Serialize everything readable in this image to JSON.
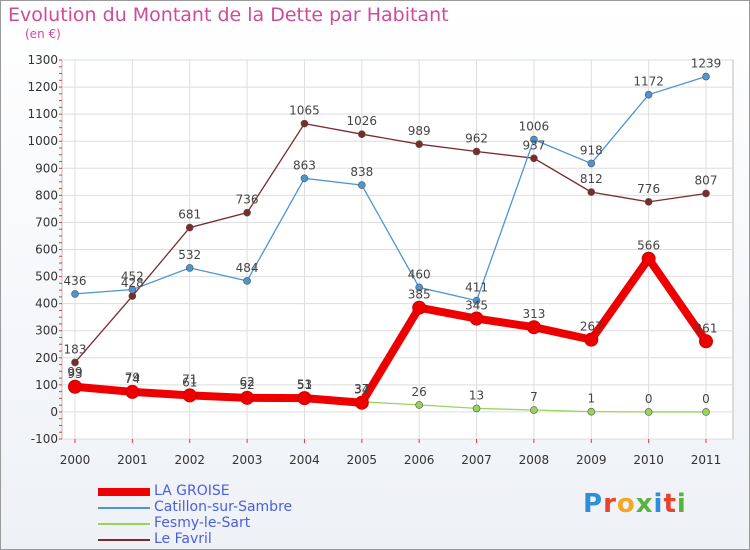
{
  "header": {
    "title": "Evolution du Montant de la Dette par Habitant",
    "unit": "(en €)"
  },
  "logo": {
    "text": "Proxiti",
    "colors": [
      "#2f8ed8",
      "#e8412c",
      "#f5a623",
      "#5ab33c",
      "#2f8ed8",
      "#e8412c",
      "#5ab33c"
    ]
  },
  "chart_data": {
    "type": "line",
    "x": [
      "2000",
      "2001",
      "2002",
      "2003",
      "2004",
      "2005",
      "2006",
      "2007",
      "2008",
      "2009",
      "2010",
      "2011"
    ],
    "ylim": [
      -100,
      1300
    ],
    "yticks": [
      -100,
      0,
      100,
      200,
      300,
      400,
      500,
      600,
      700,
      800,
      900,
      1000,
      1100,
      1200,
      1300
    ],
    "grid": true,
    "legend_position": "bottom-left",
    "series": [
      {
        "name": "LA GROISE",
        "color": "#ee0000",
        "values": [
          93,
          74,
          61,
          52,
          51,
          34,
          385,
          345,
          313,
          267,
          566,
          261
        ],
        "labels": [
          "93",
          "74",
          "61",
          "52",
          "51",
          "34",
          "385",
          "345",
          "313",
          "267",
          "566",
          "261"
        ]
      },
      {
        "name": "Catillon-sur-Sambre",
        "color": "#4e94d0",
        "values": [
          436,
          452,
          532,
          484,
          863,
          838,
          460,
          411,
          1006,
          918,
          1172,
          1239
        ],
        "labels": [
          "436",
          "452",
          "532",
          "484",
          "863",
          "838",
          "460",
          "411",
          "1006",
          "918",
          "1172",
          "1239"
        ]
      },
      {
        "name": "Fesmy-le-Sart",
        "color": "#99d35e",
        "values": [
          99,
          79,
          71,
          62,
          53,
          37,
          26,
          13,
          7,
          1,
          0,
          0
        ],
        "labels": [
          "99",
          "79",
          "71",
          "62",
          "53",
          "37",
          "26",
          "13",
          "7",
          "1",
          "0",
          "0"
        ]
      },
      {
        "name": "Le Favril",
        "color": "#7b2b2b",
        "values": [
          183,
          428,
          681,
          736,
          1065,
          1026,
          989,
          962,
          937,
          812,
          776,
          807
        ],
        "labels": [
          "183",
          "428",
          "681",
          "736",
          "1065",
          "1026",
          "989",
          "962",
          "937",
          "812",
          "776",
          "807"
        ]
      }
    ]
  }
}
